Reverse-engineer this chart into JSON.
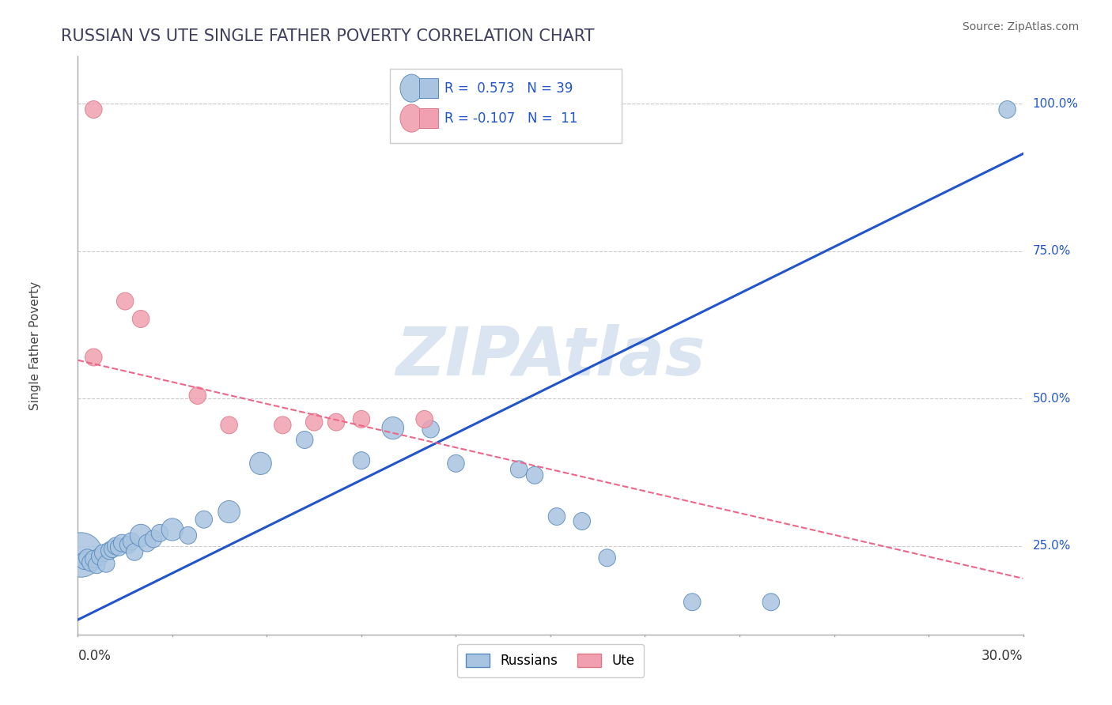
{
  "title": "RUSSIAN VS UTE SINGLE FATHER POVERTY CORRELATION CHART",
  "source": "Source: ZipAtlas.com",
  "ylabel": "Single Father Poverty",
  "xmin": 0.0,
  "xmax": 0.3,
  "ymin": 0.1,
  "ymax": 1.08,
  "ytick_labels": [
    "25.0%",
    "50.0%",
    "75.0%",
    "100.0%"
  ],
  "ytick_positions": [
    0.25,
    0.5,
    0.75,
    1.0
  ],
  "blue_color": "#a8c4e0",
  "blue_edge_color": "#5588bb",
  "pink_color": "#f0a0b0",
  "pink_edge_color": "#dd7788",
  "blue_line_color": "#2255cc",
  "pink_line_color": "#ee6688",
  "watermark_color": "#b8cce4",
  "title_color": "#404060",
  "source_color": "#666666",
  "grid_color": "#cccccc",
  "blue_line_y0": 0.125,
  "blue_line_y1": 0.915,
  "pink_line_y0": 0.565,
  "pink_line_y1": 0.195,
  "russian_points": [
    [
      0.001,
      0.235
    ],
    [
      0.002,
      0.225
    ],
    [
      0.003,
      0.23
    ],
    [
      0.004,
      0.222
    ],
    [
      0.005,
      0.228
    ],
    [
      0.006,
      0.218
    ],
    [
      0.007,
      0.232
    ],
    [
      0.008,
      0.238
    ],
    [
      0.009,
      0.22
    ],
    [
      0.01,
      0.242
    ],
    [
      0.011,
      0.245
    ],
    [
      0.012,
      0.25
    ],
    [
      0.013,
      0.248
    ],
    [
      0.014,
      0.255
    ],
    [
      0.016,
      0.252
    ],
    [
      0.017,
      0.258
    ],
    [
      0.018,
      0.24
    ],
    [
      0.02,
      0.268
    ],
    [
      0.022,
      0.255
    ],
    [
      0.024,
      0.262
    ],
    [
      0.026,
      0.272
    ],
    [
      0.03,
      0.278
    ],
    [
      0.035,
      0.268
    ],
    [
      0.04,
      0.295
    ],
    [
      0.048,
      0.308
    ],
    [
      0.058,
      0.39
    ],
    [
      0.072,
      0.43
    ],
    [
      0.09,
      0.395
    ],
    [
      0.1,
      0.45
    ],
    [
      0.112,
      0.448
    ],
    [
      0.12,
      0.39
    ],
    [
      0.14,
      0.38
    ],
    [
      0.145,
      0.37
    ],
    [
      0.152,
      0.3
    ],
    [
      0.16,
      0.292
    ],
    [
      0.168,
      0.23
    ],
    [
      0.195,
      0.155
    ],
    [
      0.22,
      0.155
    ],
    [
      0.295,
      0.99
    ]
  ],
  "russian_sizes": [
    180,
    70,
    70,
    70,
    70,
    70,
    70,
    70,
    70,
    70,
    70,
    70,
    70,
    70,
    70,
    70,
    70,
    90,
    70,
    70,
    70,
    90,
    70,
    70,
    90,
    90,
    70,
    70,
    90,
    70,
    70,
    70,
    70,
    70,
    70,
    70,
    70,
    70,
    70
  ],
  "ute_points": [
    [
      0.005,
      0.99
    ],
    [
      0.015,
      0.665
    ],
    [
      0.02,
      0.635
    ],
    [
      0.005,
      0.57
    ],
    [
      0.038,
      0.505
    ],
    [
      0.048,
      0.455
    ],
    [
      0.065,
      0.455
    ],
    [
      0.075,
      0.46
    ],
    [
      0.082,
      0.46
    ],
    [
      0.09,
      0.465
    ],
    [
      0.11,
      0.465
    ]
  ],
  "ute_sizes": [
    70,
    70,
    70,
    70,
    70,
    70,
    70,
    70,
    70,
    70,
    70
  ]
}
